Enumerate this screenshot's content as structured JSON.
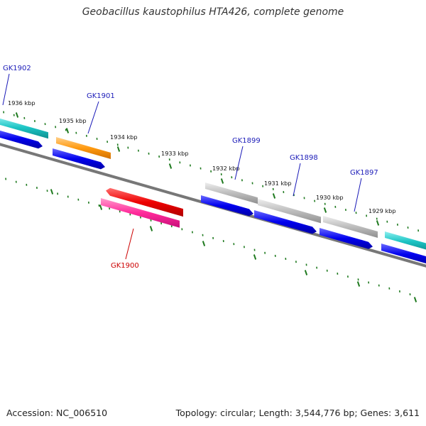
{
  "title": "Geobacillus kaustophilus HTA426, complete genome",
  "footer": {
    "accession": "Accession: NC_006510",
    "summary": "Topology: circular; Length: 3,544,776 bp; Genes: 3,611"
  },
  "colors": {
    "backbone": "#777777",
    "tick": "#1f7a1f",
    "gene_label_forward": "#1a1ab8",
    "gene_label_reverse": "#cc0000",
    "cds_blue": "#0000ee",
    "teal": "#1cc4c4",
    "orange": "#ff9a10",
    "red": "#ee0000",
    "pink": "#ff2a9a",
    "grey": "#bdbdbd"
  },
  "ticks": [
    {
      "label": "1936 kbp"
    },
    {
      "label": "1935 kbp"
    },
    {
      "label": "1934 kbp"
    },
    {
      "label": "1933 kbp"
    },
    {
      "label": "1932 kbp"
    },
    {
      "label": "1931 kbp"
    },
    {
      "label": "1930 kbp"
    },
    {
      "label": "1929 kbp"
    }
  ],
  "genes": [
    {
      "name": "GK1902",
      "strand": "forward"
    },
    {
      "name": "GK1901",
      "strand": "forward"
    },
    {
      "name": "GK1900",
      "strand": "reverse"
    },
    {
      "name": "GK1899",
      "strand": "forward"
    },
    {
      "name": "GK1898",
      "strand": "forward"
    },
    {
      "name": "GK1897",
      "strand": "forward"
    }
  ]
}
